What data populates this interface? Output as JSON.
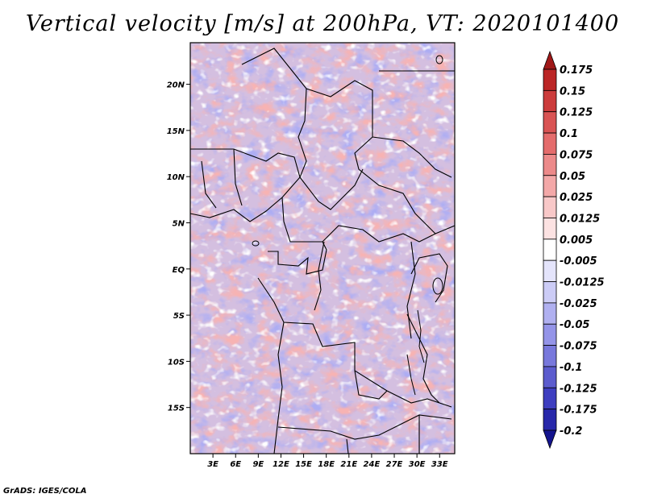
{
  "chart_data": {
    "type": "heatmap",
    "title": "Vertical velocity [m/s] at 200hPa, VT: 2020101400",
    "xlabel": "",
    "ylabel": "",
    "xlim": [
      0,
      35
    ],
    "ylim": [
      -20,
      24.5
    ],
    "x_ticks": [
      {
        "value": 3,
        "label": "3E"
      },
      {
        "value": 6,
        "label": "6E"
      },
      {
        "value": 9,
        "label": "9E"
      },
      {
        "value": 12,
        "label": "12E"
      },
      {
        "value": 15,
        "label": "15E"
      },
      {
        "value": 18,
        "label": "18E"
      },
      {
        "value": 21,
        "label": "21E"
      },
      {
        "value": 24,
        "label": "24E"
      },
      {
        "value": 27,
        "label": "27E"
      },
      {
        "value": 30,
        "label": "30E"
      },
      {
        "value": 33,
        "label": "33E"
      }
    ],
    "y_ticks": [
      {
        "value": 20,
        "label": "20N"
      },
      {
        "value": 15,
        "label": "15N"
      },
      {
        "value": 10,
        "label": "10N"
      },
      {
        "value": 5,
        "label": "5N"
      },
      {
        "value": 0,
        "label": "EQ"
      },
      {
        "value": -5,
        "label": "5S"
      },
      {
        "value": -10,
        "label": "10S"
      },
      {
        "value": -15,
        "label": "15S"
      }
    ],
    "colorbar": {
      "levels": [
        "0.175",
        "0.15",
        "0.125",
        "0.1",
        "0.075",
        "0.05",
        "0.025",
        "0.0125",
        "0.005",
        "-0.005",
        "-0.0125",
        "-0.025",
        "-0.05",
        "-0.075",
        "-0.1",
        "-0.125",
        "-0.175",
        "-0.2"
      ],
      "colors": [
        "#a01818",
        "#bb2626",
        "#cc3c3c",
        "#d95454",
        "#e46c6c",
        "#ec8a8a",
        "#f3a8a8",
        "#f8c8c8",
        "#fce2e2",
        "#ffffff",
        "#e4e4fb",
        "#ccccf6",
        "#b0b0f0",
        "#9494e8",
        "#7878dc",
        "#5c5cce",
        "#3e3ec0",
        "#2828aa",
        "#14148e"
      ]
    },
    "field_description_values": {
      "max": 0.175,
      "min": -0.2
    }
  },
  "credit": "GrADS: IGES/COLA"
}
